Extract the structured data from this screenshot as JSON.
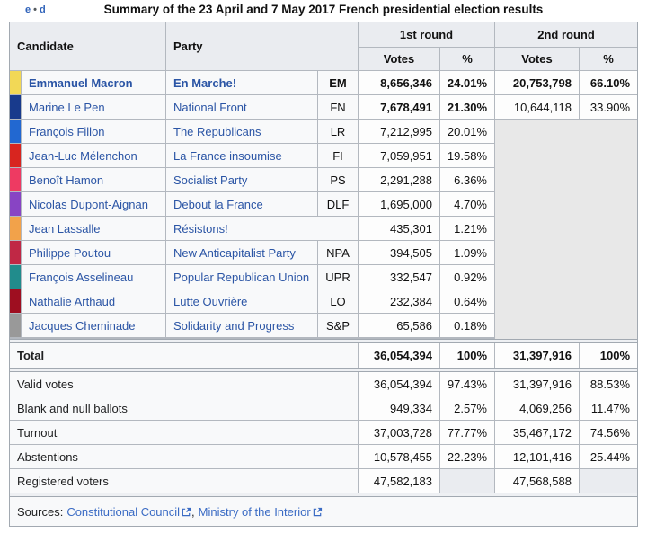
{
  "edit_links": {
    "e": "e",
    "d": "d",
    "sep": "•"
  },
  "title": "Summary of the 23 April and 7 May 2017 French presidential election results",
  "header": {
    "candidate": "Candidate",
    "party": "Party",
    "round1": "1st round",
    "round2": "2nd round",
    "votes": "Votes",
    "pct": "%"
  },
  "table": {
    "candidates": [
      {
        "color": "#F2D856",
        "name": "Emmanuel Macron",
        "party": "En Marche!",
        "abbr": "EM",
        "r1_votes": "8,656,346",
        "r1_pct": "24.01%",
        "r2_votes": "20,753,798",
        "r2_pct": "66.10%",
        "bold_row": true,
        "bold_r1": true
      },
      {
        "color": "#183A8C",
        "name": "Marine Le Pen",
        "party": "National Front",
        "abbr": "FN",
        "r1_votes": "7,678,491",
        "r1_pct": "21.30%",
        "r2_votes": "10,644,118",
        "r2_pct": "33.90%",
        "bold_row": false,
        "bold_r1": true
      },
      {
        "color": "#2268D1",
        "name": "François Fillon",
        "party": "The Republicans",
        "abbr": "LR",
        "r1_votes": "7,212,995",
        "r1_pct": "20.01%",
        "r2_votes": "",
        "r2_pct": "",
        "bold_row": false,
        "bold_r1": false
      },
      {
        "color": "#D8251F",
        "name": "Jean-Luc Mélenchon",
        "party": "La France insoumise",
        "abbr": "FI",
        "r1_votes": "7,059,951",
        "r1_pct": "19.58%",
        "r2_votes": "",
        "r2_pct": "",
        "bold_row": false,
        "bold_r1": false
      },
      {
        "color": "#EE3A62",
        "name": "Benoît Hamon",
        "party": "Socialist Party",
        "abbr": "PS",
        "r1_votes": "2,291,288",
        "r1_pct": "6.36%",
        "r2_votes": "",
        "r2_pct": "",
        "bold_row": false,
        "bold_r1": false
      },
      {
        "color": "#8844C4",
        "name": "Nicolas Dupont-Aignan",
        "party": "Debout la France",
        "abbr": "DLF",
        "r1_votes": "1,695,000",
        "r1_pct": "4.70%",
        "r2_votes": "",
        "r2_pct": "",
        "bold_row": false,
        "bold_r1": false
      },
      {
        "color": "#F2A24A",
        "name": "Jean Lassalle",
        "party": "Résistons!",
        "abbr": "",
        "r1_votes": "435,301",
        "r1_pct": "1.21%",
        "r2_votes": "",
        "r2_pct": "",
        "bold_row": false,
        "bold_r1": false
      },
      {
        "color": "#C02845",
        "name": "Philippe Poutou",
        "party": "New Anticapitalist Party",
        "abbr": "NPA",
        "r1_votes": "394,505",
        "r1_pct": "1.09%",
        "r2_votes": "",
        "r2_pct": "",
        "bold_row": false,
        "bold_r1": false
      },
      {
        "color": "#218C8C",
        "name": "François Asselineau",
        "party": "Popular Republican Union",
        "abbr": "UPR",
        "r1_votes": "332,547",
        "r1_pct": "0.92%",
        "r2_votes": "",
        "r2_pct": "",
        "bold_row": false,
        "bold_r1": false
      },
      {
        "color": "#9E0E20",
        "name": "Nathalie Arthaud",
        "party": "Lutte Ouvrière",
        "abbr": "LO",
        "r1_votes": "232,384",
        "r1_pct": "0.64%",
        "r2_votes": "",
        "r2_pct": "",
        "bold_row": false,
        "bold_r1": false
      },
      {
        "color": "#999999",
        "name": "Jacques Cheminade",
        "party": "Solidarity and Progress",
        "abbr": "S&P",
        "r1_votes": "65,586",
        "r1_pct": "0.18%",
        "r2_votes": "",
        "r2_pct": "",
        "bold_row": false,
        "bold_r1": false
      }
    ],
    "total": {
      "label": "Total",
      "r1_votes": "36,054,394",
      "r1_pct": "100%",
      "r2_votes": "31,397,916",
      "r2_pct": "100%"
    },
    "stats": [
      {
        "label": "Valid votes",
        "r1_votes": "36,054,394",
        "r1_pct": "97.43%",
        "r2_votes": "31,397,916",
        "r2_pct": "88.53%",
        "pct_empty": false
      },
      {
        "label": "Blank and null ballots",
        "r1_votes": "949,334",
        "r1_pct": "2.57%",
        "r2_votes": "4,069,256",
        "r2_pct": "11.47%",
        "pct_empty": false
      },
      {
        "label": "Turnout",
        "r1_votes": "37,003,728",
        "r1_pct": "77.77%",
        "r2_votes": "35,467,172",
        "r2_pct": "74.56%",
        "pct_empty": false
      },
      {
        "label": "Abstentions",
        "r1_votes": "10,578,455",
        "r1_pct": "22.23%",
        "r2_votes": "12,101,416",
        "r2_pct": "25.44%",
        "pct_empty": false
      },
      {
        "label": "Registered voters",
        "r1_votes": "47,582,183",
        "r1_pct": "",
        "r2_votes": "47,568,588",
        "r2_pct": "",
        "pct_empty": true
      }
    ]
  },
  "sources": {
    "prefix": "Sources:",
    "link1": "Constitutional Council",
    "separator": ",",
    "link2": "Ministry of the Interior"
  }
}
